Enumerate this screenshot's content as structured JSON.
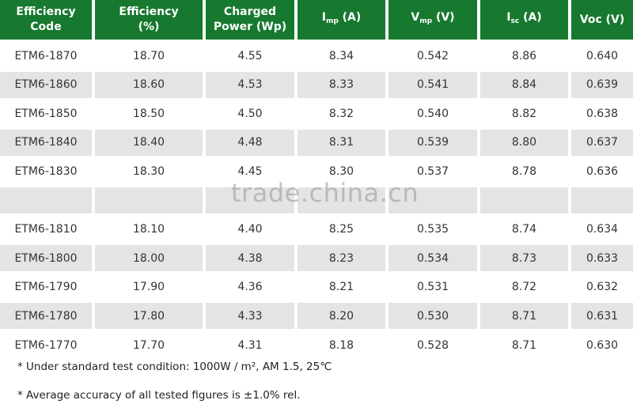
{
  "table": {
    "headers": [
      {
        "lines": [
          "Efficiency",
          "Code"
        ]
      },
      {
        "lines": [
          "Efficiency",
          "(%)"
        ]
      },
      {
        "lines": [
          "Charged",
          "Power (Wp)"
        ]
      },
      {
        "main": "I",
        "sub": "mp",
        "suffix": " (A)"
      },
      {
        "main": "V",
        "sub": "mp",
        "suffix": " (V)"
      },
      {
        "main": "I",
        "sub": "sc",
        "suffix": " (A)"
      },
      {
        "lines": [
          "Voc (V)"
        ]
      }
    ],
    "rows": [
      [
        "ETM6-1870",
        "18.70",
        "4.55",
        "8.34",
        "0.542",
        "8.86",
        "0.640"
      ],
      [
        "ETM6-1860",
        "18.60",
        "4.53",
        "8.33",
        "0.541",
        "8.84",
        "0.639"
      ],
      [
        "ETM6-1850",
        "18.50",
        "4.50",
        "8.32",
        "0.540",
        "8.82",
        "0.638"
      ],
      [
        "ETM6-1840",
        "18.40",
        "4.48",
        "8.31",
        "0.539",
        "8.80",
        "0.637"
      ],
      [
        "ETM6-1830",
        "18.30",
        "4.45",
        "8.30",
        "0.537",
        "8.78",
        "0.636"
      ],
      null,
      [
        "ETM6-1810",
        "18.10",
        "4.40",
        "8.25",
        "0.535",
        "8.74",
        "0.634"
      ],
      [
        "ETM6-1800",
        "18.00",
        "4.38",
        "8.23",
        "0.534",
        "8.73",
        "0.633"
      ],
      [
        "ETM6-1790",
        "17.90",
        "4.36",
        "8.21",
        "0.531",
        "8.72",
        "0.632"
      ],
      [
        "ETM6-1780",
        "17.80",
        "4.33",
        "8.20",
        "0.530",
        "8.71",
        "0.631"
      ],
      [
        "ETM6-1770",
        "17.70",
        "4.31",
        "8.18",
        "0.528",
        "8.71",
        "0.630"
      ]
    ]
  },
  "watermark": "trade.china.cn",
  "notes": [
    "* Under standard test condition: 1000W / m², AM 1.5, 25℃",
    "* Average accuracy of all tested figures is ±1.0% rel."
  ]
}
